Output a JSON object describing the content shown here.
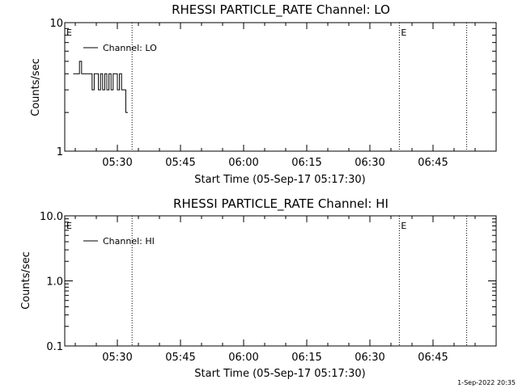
{
  "footer": {
    "timestamp": "1-Sep-2022 20:35"
  },
  "chart_data": [
    {
      "type": "line",
      "title": "RHESSI PARTICLE_RATE Channel: LO",
      "xlabel": "Start Time (05-Sep-17 05:17:30)",
      "ylabel": "Counts/sec",
      "yscale": "log",
      "ylim": [
        1,
        10
      ],
      "ytick_labels": [
        "1",
        "10"
      ],
      "ytick_values": [
        1,
        10
      ],
      "xlim": [
        "05:17:30",
        "07:00:00"
      ],
      "xtick_labels": [
        "05:30",
        "05:45",
        "06:00",
        "06:15",
        "06:30",
        "06:45"
      ],
      "xtick_values": [
        "05:30",
        "05:45",
        "06:00",
        "06:15",
        "06:30",
        "06:45"
      ],
      "legend": {
        "placement": "top-left"
      },
      "series": [
        {
          "name": "Channel: LO",
          "color": "#000000",
          "x": [
            "05:19:30",
            "05:20:00",
            "05:20:30",
            "05:21:00",
            "05:21:30",
            "05:22:00",
            "05:22:30",
            "05:23:00",
            "05:23:30",
            "05:24:00",
            "05:24:30",
            "05:25:00",
            "05:25:30",
            "05:26:00",
            "05:26:30",
            "05:27:00",
            "05:27:30",
            "05:28:00",
            "05:28:30",
            "05:29:00",
            "05:29:30",
            "05:30:00",
            "05:30:30",
            "05:31:00",
            "05:31:30",
            "05:32:00"
          ],
          "y": [
            4,
            4,
            4,
            5,
            4,
            4,
            4,
            4,
            4,
            3,
            4,
            4,
            3,
            4,
            3,
            4,
            3,
            4,
            3,
            4,
            4,
            3,
            4,
            3,
            3,
            2
          ]
        }
      ],
      "event_markers": [
        {
          "label": "E",
          "time": "05:17:30"
        },
        {
          "label": "E",
          "time": "06:37:00"
        }
      ],
      "vertical_lines": [
        "05:33:30",
        "06:37:00",
        "06:53:00"
      ]
    },
    {
      "type": "line",
      "title": "RHESSI PARTICLE_RATE Channel: HI",
      "xlabel": "Start Time (05-Sep-17 05:17:30)",
      "ylabel": "Counts/sec",
      "yscale": "log",
      "ylim": [
        0.1,
        10
      ],
      "ytick_labels": [
        "0.1",
        "1.0",
        "10.0"
      ],
      "ytick_values": [
        0.1,
        1,
        10
      ],
      "xlim": [
        "05:17:30",
        "07:00:00"
      ],
      "xtick_labels": [
        "05:30",
        "05:45",
        "06:00",
        "06:15",
        "06:30",
        "06:45"
      ],
      "xtick_values": [
        "05:30",
        "05:45",
        "06:00",
        "06:15",
        "06:30",
        "06:45"
      ],
      "legend": {
        "placement": "top-left"
      },
      "series": [
        {
          "name": "Channel: HI",
          "color": "#000000",
          "x": [],
          "y": []
        }
      ],
      "event_markers": [
        {
          "label": "E",
          "time": "05:17:30"
        },
        {
          "label": "E",
          "time": "06:37:00"
        }
      ],
      "vertical_lines": [
        "05:33:30",
        "06:37:00",
        "06:53:00"
      ]
    }
  ]
}
